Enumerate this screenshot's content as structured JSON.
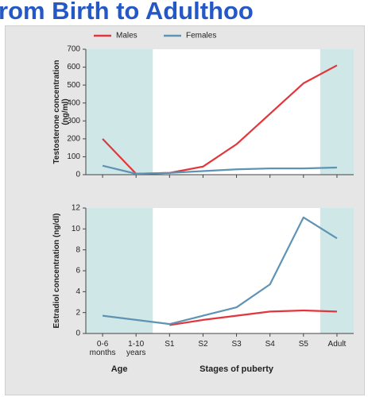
{
  "title": "rom Birth to Adulthoo",
  "chart_data": [
    {
      "type": "line",
      "ylabel": "Testosterone concentration (ng/ml)",
      "ylim": [
        0,
        700
      ],
      "yticks": [
        0,
        100,
        200,
        300,
        400,
        500,
        600,
        700
      ],
      "legend": "top",
      "series": [
        {
          "name": "Males",
          "color": "#e2363c",
          "values": [
            200,
            5,
            10,
            45,
            170,
            340,
            510,
            610
          ]
        },
        {
          "name": "Females",
          "color": "#5e93b4",
          "values": [
            50,
            5,
            10,
            20,
            30,
            35,
            35,
            40
          ]
        }
      ]
    },
    {
      "type": "line",
      "ylabel": "Estradiol concentration (ng/dl)",
      "ylim": [
        0,
        12
      ],
      "yticks": [
        0,
        2,
        4,
        6,
        8,
        10,
        12
      ],
      "categories": [
        "0-6 months",
        "1-10 years",
        "S1",
        "S2",
        "S3",
        "S4",
        "S5",
        "Adult"
      ],
      "x_group_labels": [
        "Age",
        "Stages of puberty"
      ],
      "series": [
        {
          "color": "#e2363c",
          "values": [
            null,
            null,
            0.8,
            1.3,
            1.7,
            2.1,
            2.2,
            2.1
          ]
        },
        {
          "color": "#5e93b4",
          "values": [
            1.7,
            1.3,
            0.9,
            1.7,
            2.5,
            4.7,
            11.1,
            9.1
          ]
        }
      ]
    }
  ]
}
